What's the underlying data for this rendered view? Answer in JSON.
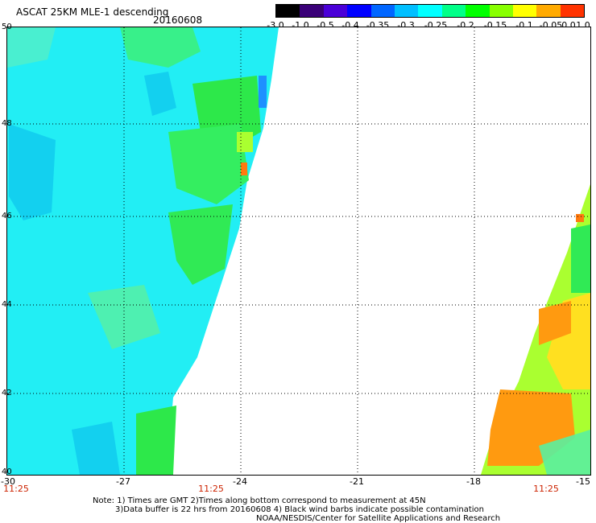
{
  "header": {
    "title": "ASCAT 25KM MLE-1 descending",
    "date": "20160608"
  },
  "colorbar": {
    "labels": [
      "-3.0",
      "-1.0",
      "-0.5",
      "-0.4",
      "-0.35",
      "-0.3",
      "-0.25",
      "-0.2",
      "-0.15",
      "-0.1",
      "-0.05",
      "0.0",
      "1.0"
    ],
    "colors": [
      "#000000",
      "#3a0078",
      "#4a00d8",
      "#0000ff",
      "#0066ff",
      "#00bfff",
      "#00ffff",
      "#00ff88",
      "#00ff00",
      "#88ff00",
      "#ffff00",
      "#ffaa00",
      "#ff3300"
    ]
  },
  "map": {
    "lon_ticks": [
      "-30",
      "-27",
      "-24",
      "-21",
      "-18",
      "-15"
    ],
    "lat_ticks": [
      "50",
      "48",
      "46",
      "44",
      "42",
      "40"
    ],
    "time_labels": [
      "11:25",
      "11:25",
      "11:25"
    ],
    "lon_range": [
      -30,
      -15
    ],
    "lat_range": [
      40,
      50
    ]
  },
  "notes": [
    "Note: 1) Times are GMT 2)Times along bottom correspond to measurement at 45N",
    "3)Data buffer is 22 hrs from 20160608 4) Black wind barbs indicate possible contamination",
    "NOAA/NESDIS/Center for Satellite Applications and Research"
  ]
}
